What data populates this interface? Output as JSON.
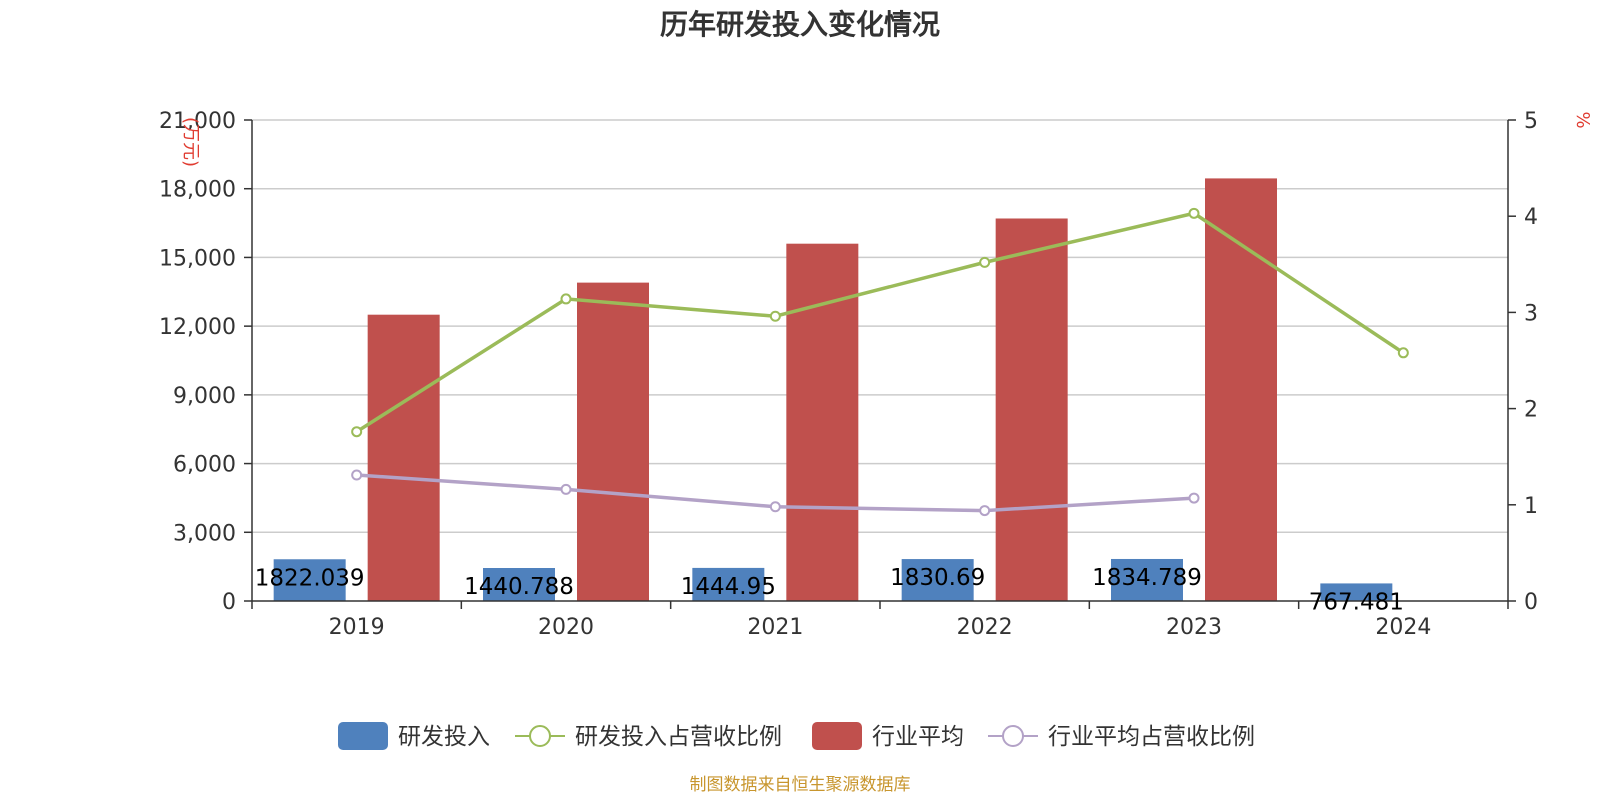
{
  "chart_data": {
    "type": "bar",
    "title": "历年研发投入变化情况",
    "categories": [
      "2019",
      "2020",
      "2021",
      "2022",
      "2023",
      "2024"
    ],
    "y_left": {
      "unit_label": "(万元)",
      "range": [
        0,
        21000
      ],
      "ticks": [
        "0",
        "3,000",
        "6,000",
        "9,000",
        "12,000",
        "15,000",
        "18,000",
        "21,000"
      ]
    },
    "y_right": {
      "unit_label": "%",
      "range": [
        0,
        5
      ],
      "ticks": [
        "0",
        "1",
        "2",
        "3",
        "4",
        "5"
      ]
    },
    "series": [
      {
        "name": "研发投入",
        "type": "bar",
        "axis": "left",
        "color": "#4f81bd",
        "values": [
          1822.039,
          1440.788,
          1444.95,
          1830.69,
          1834.789,
          767.481
        ],
        "labels": [
          "1822.039",
          "1440.788",
          "1444.95",
          "1830.69",
          "1834.789",
          "767.481"
        ]
      },
      {
        "name": "研发投入占营收比例",
        "type": "line",
        "axis": "right",
        "color": "#9bbb59",
        "values": [
          1.76,
          3.14,
          2.96,
          3.52,
          4.03,
          2.58
        ]
      },
      {
        "name": "行业平均",
        "type": "bar",
        "axis": "left",
        "color": "#c0504d",
        "values": [
          12500,
          13900,
          15600,
          16700,
          18450,
          null
        ]
      },
      {
        "name": "行业平均占营收比例",
        "type": "line",
        "axis": "right",
        "color": "#b3a2c7",
        "values": [
          1.31,
          1.16,
          0.98,
          0.94,
          1.07,
          null
        ]
      }
    ],
    "legend_position": "bottom",
    "grid": true
  },
  "source_note": "制图数据来自恒生聚源数据库"
}
